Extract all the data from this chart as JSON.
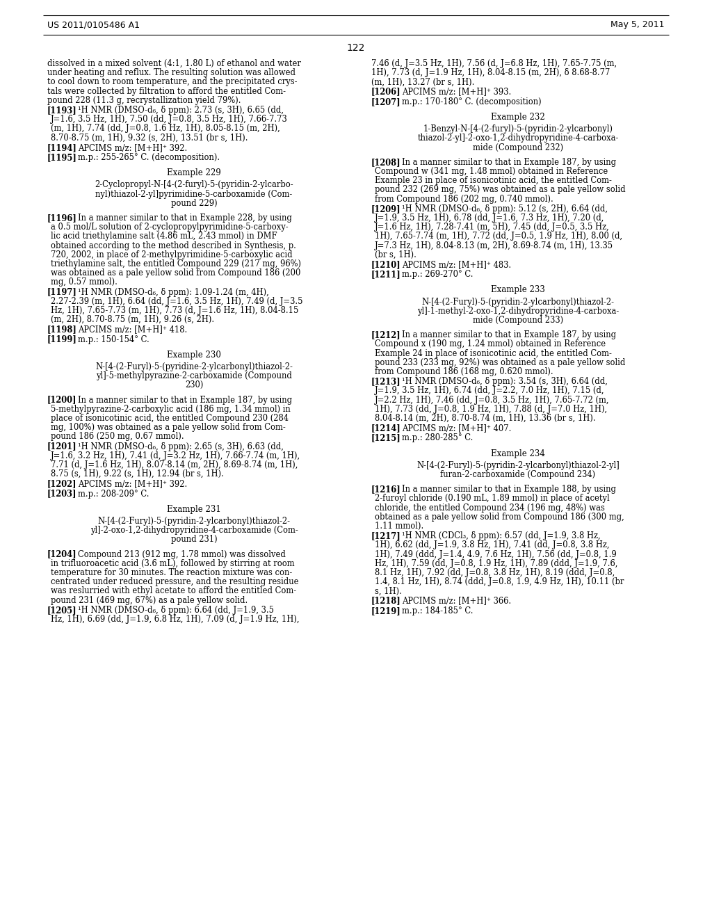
{
  "header_left": "US 2011/0105486 A1",
  "header_right": "May 5, 2011",
  "page_number": "122",
  "background_color": "#ffffff",
  "text_color": "#000000",
  "content": [
    {
      "type": "body",
      "col": 0,
      "text": "dissolved in a mixed solvent (4:1, 1.80 L) of ethanol and water\nunder heating and reflux. The resulting solution was allowed\nto cool down to room temperature, and the precipitated crys-\ntals were collected by filtration to afford the entitled Com-\npound 228 (11.3 g, recrystallization yield 79%)."
    },
    {
      "type": "numbered",
      "col": 0,
      "num": "[1193]",
      "text": "¹H NMR (DMSO-d₆, δ ppm): 2.73 (s, 3H), 6.65 (dd,\nJ=1.6, 3.5 Hz, 1H), 7.50 (dd, J=0.8, 3.5 Hz, 1H), 7.66-7.73\n(m, 1H), 7.74 (dd, J=0.8, 1.6 Hz, 1H), 8.05-8.15 (m, 2H),\n8.70-8.75 (m, 1H), 9.32 (s, 2H), 13.51 (br s, 1H)."
    },
    {
      "type": "numbered",
      "col": 0,
      "num": "[1194]",
      "text": "APCIMS m/z: [M+H]⁺ 392."
    },
    {
      "type": "numbered",
      "col": 0,
      "num": "[1195]",
      "text": "m.p.: 255-265° C. (decomposition)."
    },
    {
      "type": "example_header",
      "col": 0,
      "text": "Example 229"
    },
    {
      "type": "example_title",
      "col": 0,
      "text": "2-Cyclopropyl-N-[4-(2-furyl)-5-(pyridin-2-ylcarbo-\nnyl)thiazol-2-yl]pyrimidine-5-carboxamide (Com-\npound 229)"
    },
    {
      "type": "numbered",
      "col": 0,
      "num": "[1196]",
      "text": "In a manner similar to that in Example 228, by using\na 0.5 mol/L solution of 2-cyclopropylpyrimidine-5-carboxy-\nlic acid triethylamine salt (4.86 mL, 2.43 mmol) in DMF\nobtained according to the method described in Synthesis, p.\n720, 2002, in place of 2-methylpyrimidine-5-carboxylic acid\ntriethylamine salt, the entitled Compound 229 (217 mg, 96%)\nwas obtained as a pale yellow solid from Compound 186 (200\nmg, 0.57 mmol)."
    },
    {
      "type": "numbered",
      "col": 0,
      "num": "[1197]",
      "text": "¹H NMR (DMSO-d₆, δ ppm): 1.09-1.24 (m, 4H),\n2.27-2.39 (m, 1H), 6.64 (dd, J=1.6, 3.5 Hz, 1H), 7.49 (d, J=3.5\nHz, 1H), 7.65-7.73 (m, 1H), 7.73 (d, J=1.6 Hz, 1H), 8.04-8.15\n(m, 2H), 8.70-8.75 (m, 1H), 9.26 (s, 2H)."
    },
    {
      "type": "numbered",
      "col": 0,
      "num": "[1198]",
      "text": "APCIMS m/z: [M+H]⁺ 418."
    },
    {
      "type": "numbered",
      "col": 0,
      "num": "[1199]",
      "text": "m.p.: 150-154° C."
    },
    {
      "type": "example_header",
      "col": 0,
      "text": "Example 230"
    },
    {
      "type": "example_title",
      "col": 0,
      "text": "N-[4-(2-Furyl)-5-(pyridine-2-ylcarbonyl)thiazol-2-\nyl]-5-methylpyrazine-2-carboxamide (Compound\n230)"
    },
    {
      "type": "numbered",
      "col": 0,
      "num": "[1200]",
      "text": "In a manner similar to that in Example 187, by using\n5-methylpyrazine-2-carboxylic acid (186 mg, 1.34 mmol) in\nplace of isonicotinic acid, the entitled Compound 230 (284\nmg, 100%) was obtained as a pale yellow solid from Com-\npound 186 (250 mg, 0.67 mmol)."
    },
    {
      "type": "numbered",
      "col": 0,
      "num": "[1201]",
      "text": "¹H NMR (DMSO-d₆, δ ppm): 2.65 (s, 3H), 6.63 (dd,\nJ=1.6, 3.2 Hz, 1H), 7.41 (d, J=3.2 Hz, 1H), 7.66-7.74 (m, 1H),\n7.71 (d, J=1.6 Hz, 1H), 8.07-8.14 (m, 2H), 8.69-8.74 (m, 1H),\n8.75 (s, 1H), 9.22 (s, 1H), 12.94 (br s, 1H)."
    },
    {
      "type": "numbered",
      "col": 0,
      "num": "[1202]",
      "text": "APCIMS m/z: [M+H]⁺ 392."
    },
    {
      "type": "numbered",
      "col": 0,
      "num": "[1203]",
      "text": "m.p.: 208-209° C."
    },
    {
      "type": "example_header",
      "col": 0,
      "text": "Example 231"
    },
    {
      "type": "example_title",
      "col": 0,
      "text": "N-[4-(2-Furyl)-5-(pyridin-2-ylcarbonyl)thiazol-2-\nyl]-2-oxo-1,2-dihydropyridine-4-carboxamide (Com-\npound 231)"
    },
    {
      "type": "numbered",
      "col": 0,
      "num": "[1204]",
      "text": "Compound 213 (912 mg, 1.78 mmol) was dissolved\nin trifluoroacetic acid (3.6 mL), followed by stirring at room\ntemperature for 30 minutes. The reaction mixture was con-\ncentrated under reduced pressure, and the resulting residue\nwas reslurried with ethyl acetate to afford the entitled Com-\npound 231 (469 mg, 67%) as a pale yellow solid."
    },
    {
      "type": "numbered",
      "col": 0,
      "num": "[1205]",
      "text": "¹H NMR (DMSO-d₆, δ ppm): 6.64 (dd, J=1.9, 3.5\nHz, 1H), 6.69 (dd, J=1.9, 6.8 Hz, 1H), 7.09 (d, J=1.9 Hz, 1H),"
    },
    {
      "type": "body_cont",
      "col": 1,
      "text": "7.46 (d, J=3.5 Hz, 1H), 7.56 (d, J=6.8 Hz, 1H), 7.65-7.75 (m,\n1H), 7.73 (d, J=1.9 Hz, 1H), 8.04-8.15 (m, 2H), δ 8.68-8.77\n(m, 1H), 13.27 (br s, 1H)."
    },
    {
      "type": "numbered",
      "col": 1,
      "num": "[1206]",
      "text": "APCIMS m/z: [M+H]⁺ 393."
    },
    {
      "type": "numbered",
      "col": 1,
      "num": "[1207]",
      "text": "m.p.: 170-180° C. (decomposition)"
    },
    {
      "type": "example_header",
      "col": 1,
      "text": "Example 232"
    },
    {
      "type": "example_title",
      "col": 1,
      "text": "1-Benzyl-N-[4-(2-furyl)-5-(pyridin-2-ylcarbonyl)\nthiazol-2-yl]-2-oxo-1,2-dihydropyridine-4-carboxa-\nmide (Compound 232)"
    },
    {
      "type": "numbered",
      "col": 1,
      "num": "[1208]",
      "text": "In a manner similar to that in Example 187, by using\nCompound w (341 mg, 1.48 mmol) obtained in Reference\nExample 23 in place of isonicotinic acid, the entitled Com-\npound 232 (269 mg, 75%) was obtained as a pale yellow solid\nfrom Compound 186 (202 mg, 0.740 mmol)."
    },
    {
      "type": "numbered",
      "col": 1,
      "num": "[1209]",
      "text": "¹H NMR (DMSO-d₆, δ ppm): 5.12 (s, 2H), 6.64 (dd,\nJ=1.9, 3.5 Hz, 1H), 6.78 (dd, J=1.6, 7.3 Hz, 1H), 7.20 (d,\nJ=1.6 Hz, 1H), 7.28-7.41 (m, 5H), 7.45 (dd, J=0.5, 3.5 Hz,\n1H), 7.65-7.74 (m, 1H), 7.72 (dd, J=0.5, 1.9 Hz, 1H), 8.00 (d,\nJ=7.3 Hz, 1H), 8.04-8.13 (m, 2H), 8.69-8.74 (m, 1H), 13.35\n(br s, 1H)."
    },
    {
      "type": "numbered",
      "col": 1,
      "num": "[1210]",
      "text": "APCIMS m/z: [M+H]⁺ 483."
    },
    {
      "type": "numbered",
      "col": 1,
      "num": "[1211]",
      "text": "m.p.: 269-270° C."
    },
    {
      "type": "example_header",
      "col": 1,
      "text": "Example 233"
    },
    {
      "type": "example_title",
      "col": 1,
      "text": "N-[4-(2-Furyl)-5-(pyridin-2-ylcarbonyl)thiazol-2-\nyl]-1-methyl-2-oxo-1,2-dihydropyridine-4-carboxa-\nmide (Compound 233)"
    },
    {
      "type": "numbered",
      "col": 1,
      "num": "[1212]",
      "text": "In a manner similar to that in Example 187, by using\nCompound x (190 mg, 1.24 mmol) obtained in Reference\nExample 24 in place of isonicotinic acid, the entitled Com-\npound 233 (233 mg, 92%) was obtained as a pale yellow solid\nfrom Compound 186 (168 mg, 0.620 mmol)."
    },
    {
      "type": "numbered",
      "col": 1,
      "num": "[1213]",
      "text": "¹H NMR (DMSO-d₆, δ ppm): 3.54 (s, 3H), 6.64 (dd,\nJ=1.9, 3.5 Hz, 1H), 6.74 (dd, J=2.2, 7.0 Hz, 1H), 7.15 (d,\nJ=2.2 Hz, 1H), 7.46 (dd, J=0.8, 3.5 Hz, 1H), 7.65-7.72 (m,\n1H), 7.73 (dd, J=0.8, 1.9 Hz, 1H), 7.88 (d, J=7.0 Hz, 1H),\n8.04-8.14 (m, 2H), 8.70-8.74 (m, 1H), 13.36 (br s, 1H)."
    },
    {
      "type": "numbered",
      "col": 1,
      "num": "[1214]",
      "text": "APCIMS m/z: [M+H]⁺ 407."
    },
    {
      "type": "numbered",
      "col": 1,
      "num": "[1215]",
      "text": "m.p.: 280-285° C."
    },
    {
      "type": "example_header",
      "col": 1,
      "text": "Example 234"
    },
    {
      "type": "example_title",
      "col": 1,
      "text": "N-[4-(2-Furyl)-5-(pyridin-2-ylcarbonyl)thiazol-2-yl]\nfuran-2-carboxamide (Compound 234)"
    },
    {
      "type": "numbered",
      "col": 1,
      "num": "[1216]",
      "text": "In a manner similar to that in Example 188, by using\n2-furoyl chloride (0.190 mL, 1.89 mmol) in place of acetyl\nchloride, the entitled Compound 234 (196 mg, 48%) was\nobtained as a pale yellow solid from Compound 186 (300 mg,\n1.11 mmol)."
    },
    {
      "type": "numbered",
      "col": 1,
      "num": "[1217]",
      "text": "¹H NMR (CDCl₃, δ ppm): 6.57 (dd, J=1.9, 3.8 Hz,\n1H), 6.62 (dd, J=1.9, 3.8 Hz, 1H), 7.41 (dd, J=0.8, 3.8 Hz,\n1H), 7.49 (ddd, J=1.4, 4.9, 7.6 Hz, 1H), 7.56 (dd, J=0.8, 1.9\nHz, 1H), 7.59 (dd, J=0.8, 1.9 Hz, 1H), 7.89 (ddd, J=1.9, 7.6,\n8.1 Hz, 1H), 7.92 (dd, J=0.8, 3.8 Hz, 1H), 8.19 (ddd, J=0.8,\n1.4, 8.1 Hz, 1H), 8.74 (ddd, J=0.8, 1.9, 4.9 Hz, 1H), 10.11 (br\ns, 1H)."
    },
    {
      "type": "numbered",
      "col": 1,
      "num": "[1218]",
      "text": "APCIMS m/z: [M+H]⁺ 366."
    },
    {
      "type": "numbered",
      "col": 1,
      "num": "[1219]",
      "text": "m.p.: 184-185° C."
    }
  ]
}
